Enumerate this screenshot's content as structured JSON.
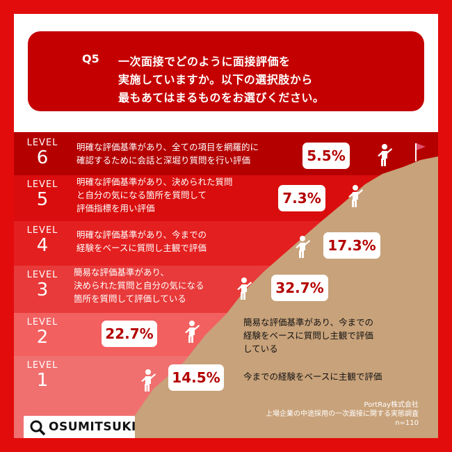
{
  "colors": {
    "frame": "#e30c0c",
    "question_box": "#c50000",
    "mountain": "#c8a27a",
    "bubble_text": "#b30000",
    "level_bands": [
      "#f07070",
      "#f26060",
      "#e83a3a",
      "#e41f1f",
      "#d90d0d",
      "#b50000"
    ]
  },
  "question": {
    "number": "Q5",
    "lines": [
      "一次面接でどのように面接評価を",
      "実施していますか。以下の選択肢から",
      "最もあてはまるものをお選びください。"
    ]
  },
  "level_word": "LEVEL",
  "chart_data": {
    "type": "bar",
    "title": "一次面接でどのように面接評価を実施していますか。以下の選択肢から最もあてはまるものをお選びください。",
    "unit": "%",
    "categories": [
      "1",
      "2",
      "3",
      "4",
      "5",
      "6"
    ],
    "descriptions": [
      "今までの経験をベースに主観で評価",
      "簡易な評価基準があり、今までの\n経験をベースに質問し主観で評価\nしている",
      "簡易な評価基準があり、\n決められた質問と自分の気になる\n箇所を質問して評価している",
      "明確な評価基準があり、今までの\n経験をベースに質問し主観で評価",
      "明確な評価基準があり、決められた質問\nと自分の気になる箇所を質問して\n評価指標を用い評価",
      "明確な評価基準があり、全ての項目を網羅的に\n確認するために会話と深堀り質問を行い評価"
    ],
    "labels": [
      "14.5%",
      "22.7%",
      "32.7%",
      "17.3%",
      "7.3%",
      "5.5%"
    ],
    "values": [
      14.5,
      22.7,
      32.7,
      17.3,
      7.3,
      5.5
    ]
  },
  "source": {
    "company": "PortRay株式会社",
    "survey": "上場企業の中途採用の一次面接に関する実態調査",
    "n": "n=110"
  },
  "logo": {
    "text": "OSUMITSUKI",
    "icon": "magnifier-icon"
  }
}
